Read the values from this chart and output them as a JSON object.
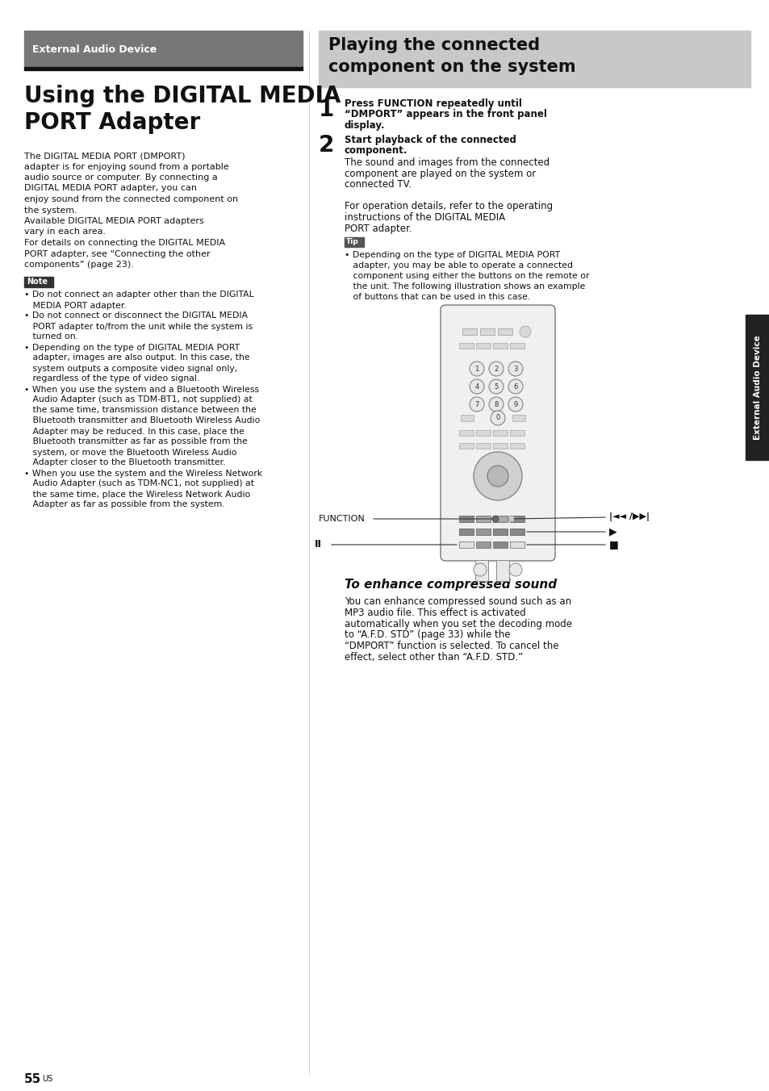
{
  "page_bg": "#ffffff",
  "left_header_label": "External Audio Device",
  "left_header_bg": "#777777",
  "left_header_black_bar": "#111111",
  "left_title_line1": "Using the DIGITAL MEDIA",
  "left_title_line2": "PORT Adapter",
  "right_header_bg": "#c8c8c8",
  "right_header_line1": "Playing the connected",
  "right_header_line2": "component on the system",
  "sidebar_bg": "#222222",
  "sidebar_text": "External Audio Device",
  "note_bg": "#333333",
  "tip_bg": "#555555",
  "text_color": "#111111",
  "body_left": [
    "The DIGITAL MEDIA PORT (DMPORT)",
    "adapter is for enjoying sound from a portable",
    "audio source or computer. By connecting a",
    "DIGITAL MEDIA PORT adapter, you can",
    "enjoy sound from the connected component on",
    "the system.",
    "Available DIGITAL MEDIA PORT adapters",
    "vary in each area.",
    "For details on connecting the DIGITAL MEDIA",
    "PORT adapter, see “Connecting the other",
    "components” (page 23)."
  ],
  "note_lines": [
    "• Do not connect an adapter other than the DIGITAL",
    "   MEDIA PORT adapter.",
    "• Do not connect or disconnect the DIGITAL MEDIA",
    "   PORT adapter to/from the unit while the system is",
    "   turned on.",
    "• Depending on the type of DIGITAL MEDIA PORT",
    "   adapter, images are also output. In this case, the",
    "   system outputs a composite video signal only,",
    "   regardless of the type of video signal.",
    "• When you use the system and a Bluetooth Wireless",
    "   Audio Adapter (such as TDM-BT1, not supplied) at",
    "   the same time, transmission distance between the",
    "   Bluetooth transmitter and Bluetooth Wireless Audio",
    "   Adapter may be reduced. In this case, place the",
    "   Bluetooth transmitter as far as possible from the",
    "   system, or move the Bluetooth Wireless Audio",
    "   Adapter closer to the Bluetooth transmitter.",
    "• When you use the system and the Wireless Network",
    "   Audio Adapter (such as TDM-NC1, not supplied) at",
    "   the same time, place the Wireless Network Audio",
    "   Adapter as far as possible from the system."
  ],
  "step1_bold": [
    "Press FUNCTION repeatedly until",
    "“DMPORT” appears in the front panel",
    "display."
  ],
  "step2_bold": [
    "Start playback of the connected",
    "component."
  ],
  "step2_body": [
    "The sound and images from the connected",
    "component are played on the system or",
    "connected TV.",
    "",
    "For operation details, refer to the operating",
    "instructions of the DIGITAL MEDIA",
    "PORT adapter."
  ],
  "tip_lines": [
    "• Depending on the type of DIGITAL MEDIA PORT",
    "   adapter, you may be able to operate a connected",
    "   component using either the buttons on the remote or",
    "   the unit. The following illustration shows an example",
    "   of buttons that can be used in this case."
  ],
  "subsection_title": "To enhance compressed sound",
  "subsection_body": [
    "You can enhance compressed sound such as an",
    "MP3 audio file. This effect is activated",
    "automatically when you set the decoding mode",
    "to “A.F.D. STD” (page 33) while the",
    "“DMPORT” function is selected. To cancel the",
    "effect, select other than “A.F.D. STD.”"
  ],
  "page_num": "55",
  "page_suffix": "US"
}
